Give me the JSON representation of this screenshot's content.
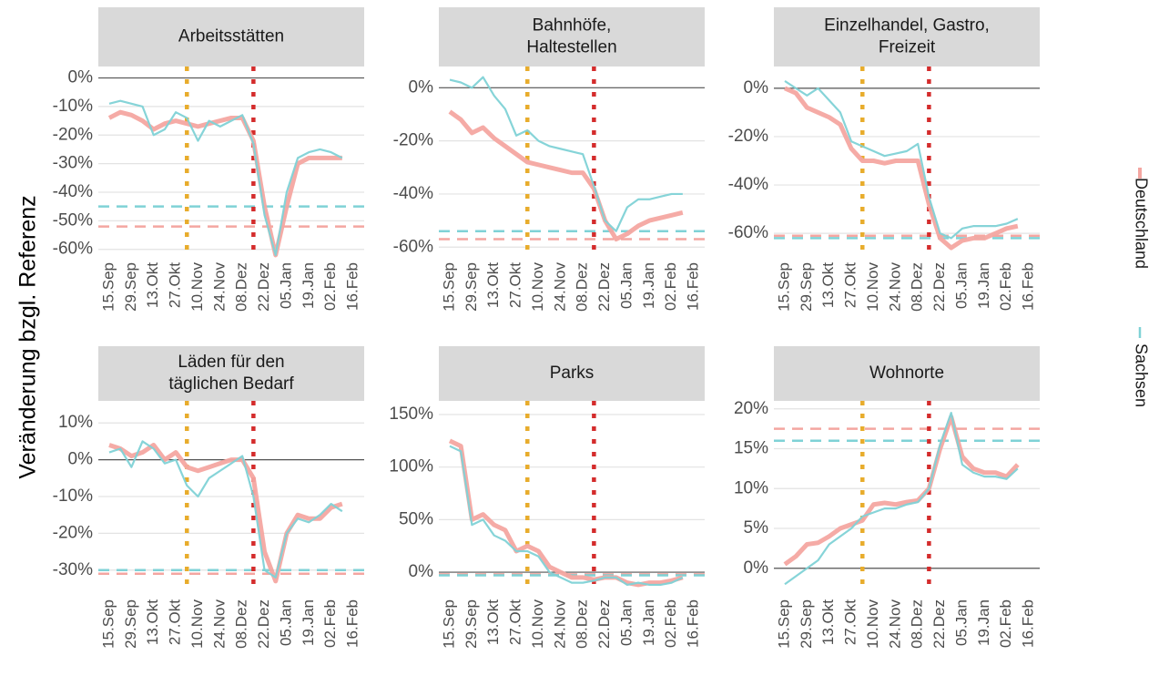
{
  "ylabel": "Veränderung bzgl. Referenz",
  "legend": "right",
  "chart_data": [
    {
      "type": "line",
      "title": "Arbeitsstätten",
      "x": [
        "15.Sep",
        "22.Sep",
        "29.Sep",
        "06.Okt",
        "13.Okt",
        "20.Okt",
        "27.Okt",
        "03.Nov",
        "10.Nov",
        "17.Nov",
        "24.Nov",
        "01.Dez",
        "08.Dez",
        "15.Dez",
        "22.Dez",
        "29.Dez",
        "05.Jan",
        "12.Jan",
        "19.Jan",
        "26.Jan",
        "02.Feb",
        "09.Feb",
        "16.Feb"
      ],
      "xticks": [
        "15.Sep",
        "29.Sep",
        "13.Okt",
        "27.Okt",
        "10.Nov",
        "24.Nov",
        "08.Dez",
        "22.Dez",
        "05.Jan",
        "19.Jan",
        "02.Feb",
        "16.Feb"
      ],
      "ylim": [
        -62,
        4
      ],
      "yticks": [
        {
          "value": 0,
          "label": "0%"
        },
        {
          "value": -10,
          "label": "-10%"
        },
        {
          "value": -20,
          "label": "-20%"
        },
        {
          "value": -30,
          "label": "-30%"
        },
        {
          "value": -40,
          "label": "-40%"
        },
        {
          "value": -50,
          "label": "-50%"
        },
        {
          "value": -60,
          "label": "-60%"
        }
      ],
      "grid": true,
      "baseline": 0,
      "vlines": [
        {
          "x": "03.Nov",
          "color": "#e8ac2c"
        },
        {
          "x": "15.Dez",
          "color": "#d42c2c"
        }
      ],
      "series": [
        {
          "name": "Deutschland",
          "color": "#f4a6a1",
          "hline": -52,
          "values": [
            -14,
            -12,
            -13,
            -15,
            -18,
            -16,
            -15,
            -16,
            -17,
            -16,
            -15,
            -14,
            -14,
            -22,
            -45,
            -62,
            -45,
            -30,
            -28,
            -28,
            -28,
            -28,
            null
          ]
        },
        {
          "name": "Sachsen",
          "color": "#7fd2d6",
          "hline": -45,
          "values": [
            -9,
            -8,
            -9,
            -10,
            -20,
            -18,
            -12,
            -14,
            -22,
            -15,
            -17,
            -15,
            -13,
            -23,
            -48,
            -62,
            -40,
            -28,
            -26,
            -25,
            -26,
            -28,
            null
          ]
        }
      ]
    },
    {
      "type": "line",
      "title": "Bahnhöfe,\nHaltestellen",
      "x": [
        "15.Sep",
        "22.Sep",
        "29.Sep",
        "06.Okt",
        "13.Okt",
        "20.Okt",
        "27.Okt",
        "03.Nov",
        "10.Nov",
        "17.Nov",
        "24.Nov",
        "01.Dez",
        "08.Dez",
        "15.Dez",
        "22.Dez",
        "29.Dez",
        "05.Jan",
        "12.Jan",
        "19.Jan",
        "26.Jan",
        "02.Feb",
        "09.Feb",
        "16.Feb"
      ],
      "xticks": [
        "15.Sep",
        "29.Sep",
        "13.Okt",
        "27.Okt",
        "10.Nov",
        "24.Nov",
        "08.Dez",
        "22.Dez",
        "05.Jan",
        "19.Jan",
        "02.Feb",
        "16.Feb"
      ],
      "ylim": [
        -63,
        8
      ],
      "yticks": [
        {
          "value": 0,
          "label": "0%"
        },
        {
          "value": -20,
          "label": "-20%"
        },
        {
          "value": -40,
          "label": "-40%"
        },
        {
          "value": -60,
          "label": "-60%"
        }
      ],
      "grid": true,
      "baseline": 0,
      "vlines": [
        {
          "x": "03.Nov",
          "color": "#e8ac2c"
        },
        {
          "x": "15.Dez",
          "color": "#d42c2c"
        }
      ],
      "series": [
        {
          "name": "Deutschland",
          "color": "#f4a6a1",
          "hline": -57,
          "values": [
            -9,
            -12,
            -17,
            -15,
            -19,
            -22,
            -25,
            -28,
            -29,
            -30,
            -31,
            -32,
            -32,
            -38,
            -50,
            -57,
            -55,
            -52,
            -50,
            -49,
            -48,
            -47,
            null
          ]
        },
        {
          "name": "Sachsen",
          "color": "#7fd2d6",
          "hline": -54,
          "values": [
            3,
            2,
            0,
            4,
            -3,
            -8,
            -18,
            -16,
            -20,
            -22,
            -23,
            -24,
            -25,
            -37,
            -50,
            -54,
            -45,
            -42,
            -42,
            -41,
            -40,
            -40,
            null
          ]
        }
      ]
    },
    {
      "type": "line",
      "title": "Einzelhandel, Gastro,\nFreizeit",
      "x": [
        "15.Sep",
        "22.Sep",
        "29.Sep",
        "06.Okt",
        "13.Okt",
        "20.Okt",
        "27.Okt",
        "03.Nov",
        "10.Nov",
        "17.Nov",
        "24.Nov",
        "01.Dez",
        "08.Dez",
        "15.Dez",
        "22.Dez",
        "29.Dez",
        "05.Jan",
        "12.Jan",
        "19.Jan",
        "26.Jan",
        "02.Feb",
        "09.Feb",
        "16.Feb"
      ],
      "xticks": [
        "15.Sep",
        "29.Sep",
        "13.Okt",
        "27.Okt",
        "10.Nov",
        "24.Nov",
        "08.Dez",
        "22.Dez",
        "05.Jan",
        "19.Jan",
        "02.Feb",
        "16.Feb"
      ],
      "ylim": [
        -69,
        9
      ],
      "yticks": [
        {
          "value": 0,
          "label": "0%"
        },
        {
          "value": -20,
          "label": "-20%"
        },
        {
          "value": -40,
          "label": "-40%"
        },
        {
          "value": -60,
          "label": "-60%"
        }
      ],
      "grid": true,
      "baseline": 0,
      "vlines": [
        {
          "x": "03.Nov",
          "color": "#e8ac2c"
        },
        {
          "x": "15.Dez",
          "color": "#d42c2c"
        }
      ],
      "series": [
        {
          "name": "Deutschland",
          "color": "#f4a6a1",
          "hline": -61,
          "values": [
            0,
            -2,
            -8,
            -10,
            -12,
            -15,
            -25,
            -30,
            -30,
            -31,
            -30,
            -30,
            -30,
            -48,
            -62,
            -66,
            -63,
            -62,
            -62,
            -60,
            -58,
            -57,
            null
          ]
        },
        {
          "name": "Sachsen",
          "color": "#7fd2d6",
          "hline": -62,
          "values": [
            3,
            0,
            -3,
            0,
            -5,
            -10,
            -22,
            -24,
            -26,
            -28,
            -27,
            -26,
            -23,
            -45,
            -60,
            -62,
            -58,
            -57,
            -57,
            -57,
            -56,
            -54,
            null
          ]
        }
      ]
    },
    {
      "type": "line",
      "title": "Läden für den\ntäglichen Bedarf",
      "x": [
        "15.Sep",
        "22.Sep",
        "29.Sep",
        "06.Okt",
        "13.Okt",
        "20.Okt",
        "27.Okt",
        "03.Nov",
        "10.Nov",
        "17.Nov",
        "24.Nov",
        "01.Dez",
        "08.Dez",
        "15.Dez",
        "22.Dez",
        "29.Dez",
        "05.Jan",
        "12.Jan",
        "19.Jan",
        "26.Jan",
        "02.Feb",
        "09.Feb",
        "16.Feb"
      ],
      "xticks": [
        "15.Sep",
        "29.Sep",
        "13.Okt",
        "27.Okt",
        "10.Nov",
        "24.Nov",
        "08.Dez",
        "22.Dez",
        "05.Jan",
        "19.Jan",
        "02.Feb",
        "16.Feb"
      ],
      "ylim": [
        -36,
        16
      ],
      "yticks": [
        {
          "value": 10,
          "label": "10%"
        },
        {
          "value": 0,
          "label": "0%"
        },
        {
          "value": -10,
          "label": "-10%"
        },
        {
          "value": -20,
          "label": "-20%"
        },
        {
          "value": -30,
          "label": "-30%"
        }
      ],
      "grid": true,
      "baseline": 0,
      "vlines": [
        {
          "x": "03.Nov",
          "color": "#e8ac2c"
        },
        {
          "x": "15.Dez",
          "color": "#d42c2c"
        }
      ],
      "series": [
        {
          "name": "Deutschland",
          "color": "#f4a6a1",
          "hline": -31,
          "values": [
            4,
            3,
            1,
            2,
            4,
            0,
            2,
            -2,
            -3,
            -2,
            -1,
            0,
            0,
            -5,
            -25,
            -33,
            -20,
            -15,
            -16,
            -16,
            -13,
            -12,
            null
          ]
        },
        {
          "name": "Sachsen",
          "color": "#7fd2d6",
          "hline": -30,
          "values": [
            2,
            3,
            -2,
            5,
            3,
            -1,
            0,
            -7,
            -10,
            -5,
            -3,
            -1,
            1,
            -10,
            -30,
            -32,
            -20,
            -16,
            -17,
            -15,
            -12,
            -14,
            null
          ]
        }
      ]
    },
    {
      "type": "line",
      "title": "Parks",
      "x": [
        "15.Sep",
        "22.Sep",
        "29.Sep",
        "06.Okt",
        "13.Okt",
        "20.Okt",
        "27.Okt",
        "03.Nov",
        "10.Nov",
        "17.Nov",
        "24.Nov",
        "01.Dez",
        "08.Dez",
        "15.Dez",
        "22.Dez",
        "29.Dez",
        "05.Jan",
        "12.Jan",
        "19.Jan",
        "26.Jan",
        "02.Feb",
        "09.Feb",
        "16.Feb"
      ],
      "xticks": [
        "15.Sep",
        "29.Sep",
        "13.Okt",
        "27.Okt",
        "10.Nov",
        "24.Nov",
        "08.Dez",
        "22.Dez",
        "05.Jan",
        "19.Jan",
        "02.Feb",
        "16.Feb"
      ],
      "ylim": [
        -19,
        163
      ],
      "yticks": [
        {
          "value": 150,
          "label": "150%"
        },
        {
          "value": 100,
          "label": "100%"
        },
        {
          "value": 50,
          "label": "50%"
        },
        {
          "value": 0,
          "label": "0%"
        }
      ],
      "grid": true,
      "baseline": 0,
      "vlines": [
        {
          "x": "03.Nov",
          "color": "#e8ac2c"
        },
        {
          "x": "15.Dez",
          "color": "#d42c2c"
        }
      ],
      "series": [
        {
          "name": "Deutschland",
          "color": "#f4a6a1",
          "hline": -2,
          "values": [
            125,
            120,
            50,
            55,
            45,
            40,
            20,
            25,
            20,
            5,
            0,
            -5,
            -5,
            -7,
            -5,
            -5,
            -10,
            -12,
            -10,
            -10,
            -8,
            -5,
            null
          ]
        },
        {
          "name": "Sachsen",
          "color": "#7fd2d6",
          "hline": -3,
          "values": [
            120,
            115,
            45,
            50,
            35,
            30,
            20,
            20,
            15,
            0,
            -5,
            -10,
            -10,
            -8,
            -5,
            -5,
            -12,
            -10,
            -12,
            -12,
            -10,
            -5,
            null
          ]
        }
      ]
    },
    {
      "type": "line",
      "title": "Wohnorte",
      "x": [
        "15.Sep",
        "22.Sep",
        "29.Sep",
        "06.Okt",
        "13.Okt",
        "20.Okt",
        "27.Okt",
        "03.Nov",
        "10.Nov",
        "17.Nov",
        "24.Nov",
        "01.Dez",
        "08.Dez",
        "15.Dez",
        "22.Dez",
        "29.Dez",
        "05.Jan",
        "12.Jan",
        "19.Jan",
        "26.Jan",
        "02.Feb",
        "09.Feb",
        "16.Feb"
      ],
      "xticks": [
        "15.Sep",
        "29.Sep",
        "13.Okt",
        "27.Okt",
        "10.Nov",
        "24.Nov",
        "08.Dez",
        "22.Dez",
        "05.Jan",
        "19.Jan",
        "02.Feb",
        "16.Feb"
      ],
      "ylim": [
        -3,
        21
      ],
      "yticks": [
        {
          "value": 20,
          "label": "20%"
        },
        {
          "value": 15,
          "label": "15%"
        },
        {
          "value": 10,
          "label": "10%"
        },
        {
          "value": 5,
          "label": "5%"
        },
        {
          "value": 0,
          "label": "0%"
        }
      ],
      "grid": true,
      "baseline": 0,
      "vlines": [
        {
          "x": "03.Nov",
          "color": "#e8ac2c"
        },
        {
          "x": "15.Dez",
          "color": "#d42c2c"
        }
      ],
      "series": [
        {
          "name": "Deutschland",
          "color": "#f4a6a1",
          "hline": 17.5,
          "values": [
            0.5,
            1.5,
            3,
            3.2,
            4,
            5,
            5.5,
            6,
            8,
            8.2,
            8,
            8.3,
            8.5,
            10,
            15,
            19,
            14,
            12.5,
            12,
            12,
            11.5,
            13,
            null
          ]
        },
        {
          "name": "Sachsen",
          "color": "#7fd2d6",
          "hline": 16,
          "values": [
            -2,
            -1,
            0,
            1,
            3,
            4,
            5,
            6.5,
            7,
            7.5,
            7.5,
            8,
            8.3,
            10,
            15.5,
            19.5,
            13,
            12,
            11.5,
            11.5,
            11.2,
            12.5,
            null
          ]
        }
      ]
    }
  ]
}
